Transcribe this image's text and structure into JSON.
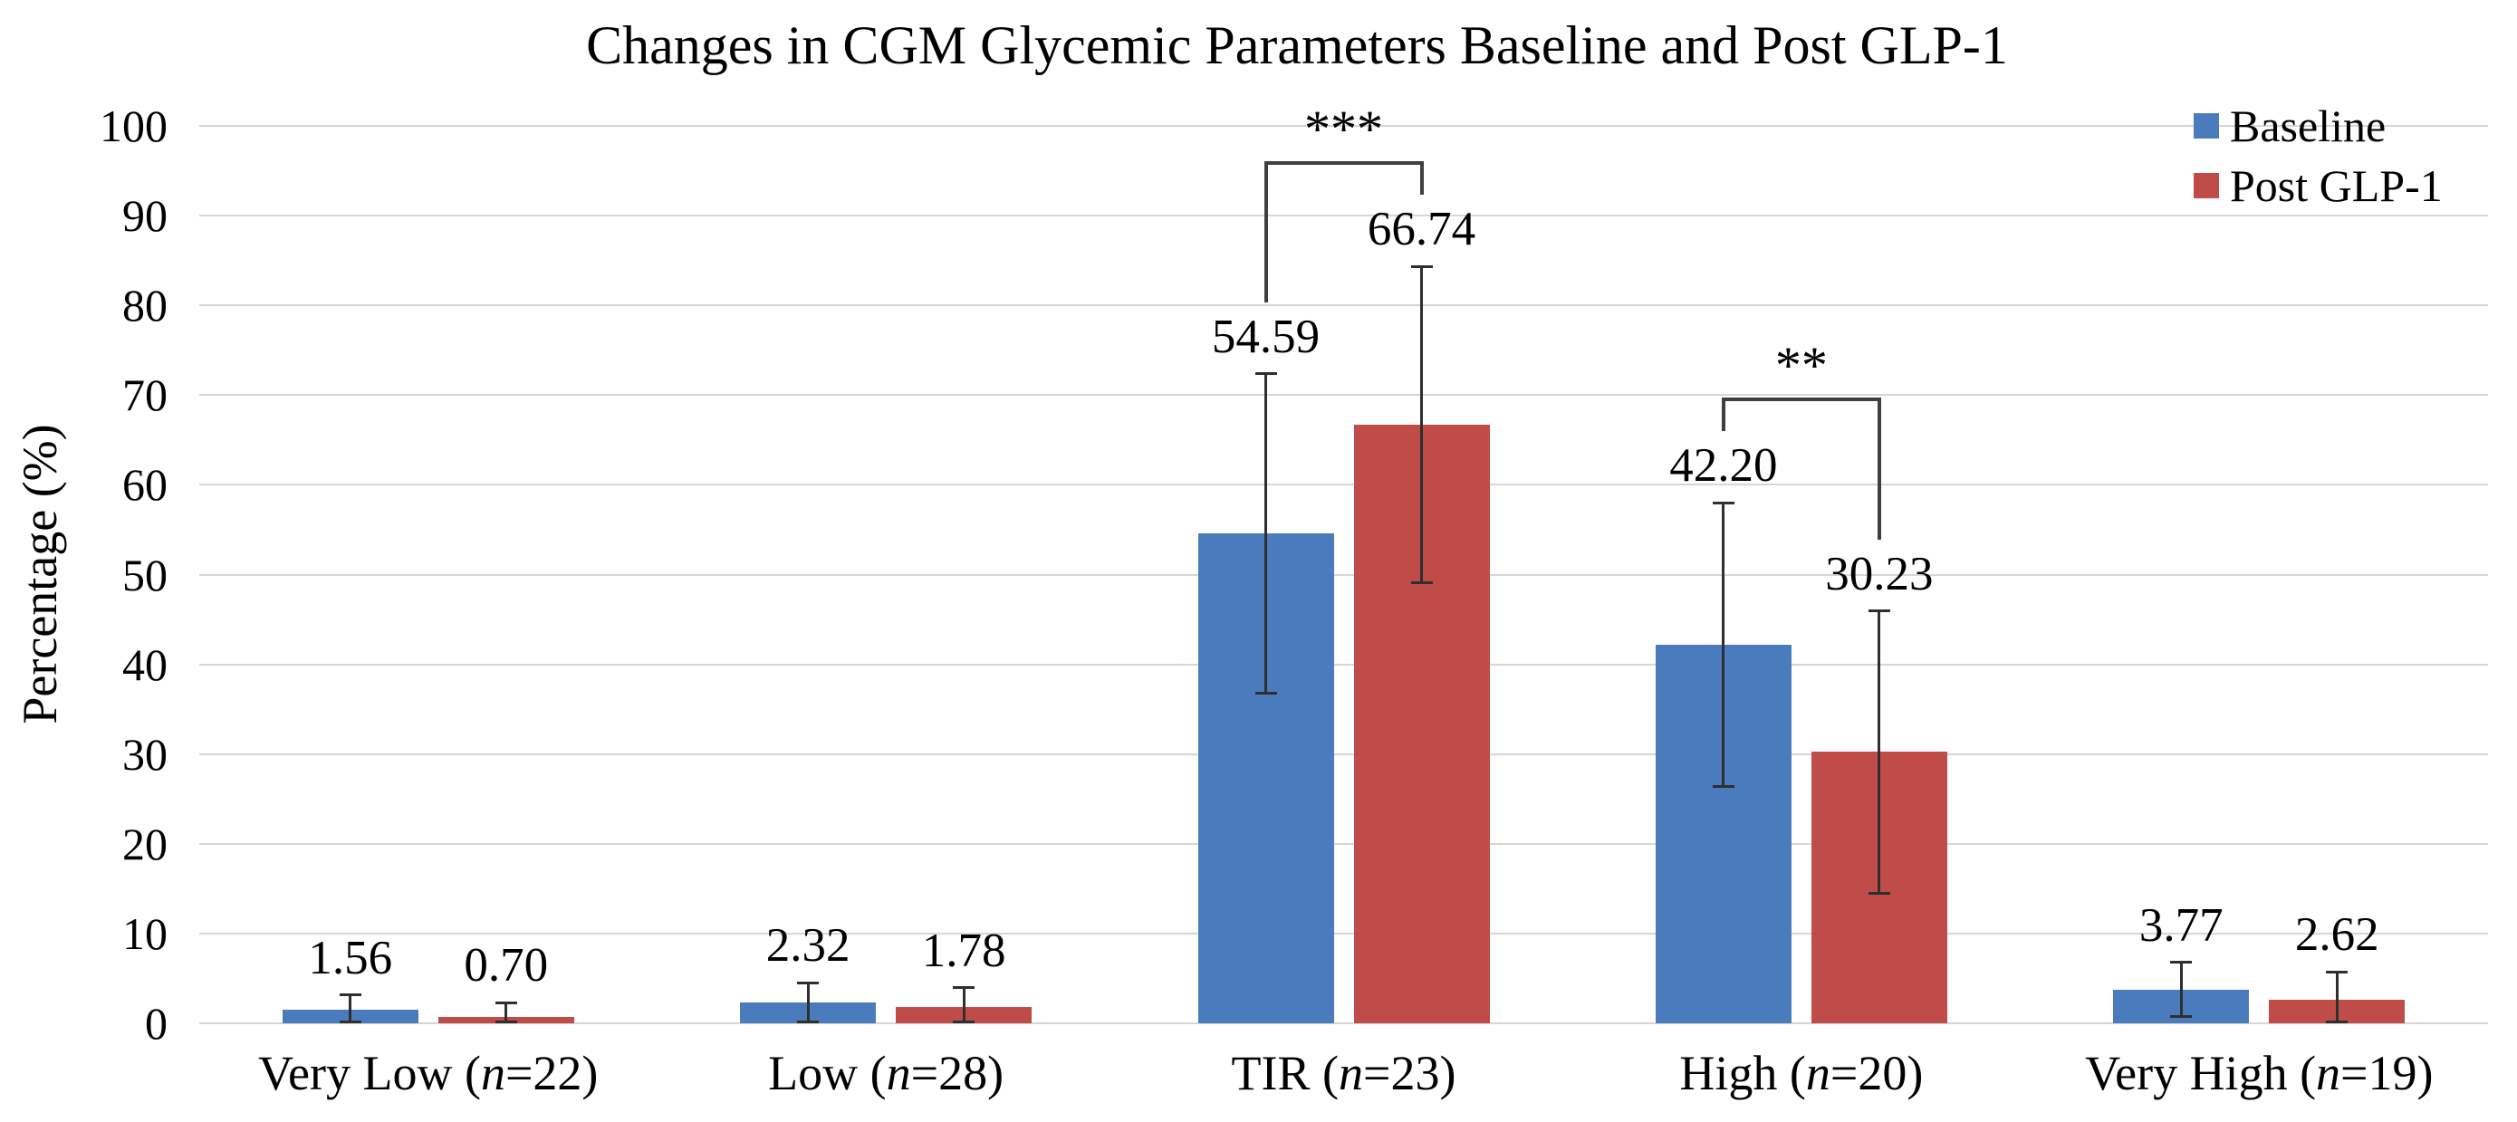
{
  "chart_data": {
    "type": "bar",
    "title": "Changes in CGM Glycemic Parameters Baseline and Post GLP-1",
    "xlabel": "",
    "ylabel": "Percentage (%)",
    "ylim": [
      0,
      100
    ],
    "ytick_labels": [
      "0",
      "10",
      "20",
      "30",
      "40",
      "50",
      "60",
      "70",
      "80",
      "90",
      "100"
    ],
    "grid": true,
    "legend_position": "top-right",
    "categories": [
      {
        "full": "Very Low (n=22)",
        "parts": [
          "Very Low (",
          "n",
          "=22)"
        ]
      },
      {
        "full": "Low (n=28)",
        "parts": [
          "Low (",
          "n",
          "=28)"
        ]
      },
      {
        "full": "TIR (n=23)",
        "parts": [
          "TIR (",
          "n",
          "=23)"
        ]
      },
      {
        "full": "High (n=20)",
        "parts": [
          "High (",
          "n",
          "=20)"
        ]
      },
      {
        "full": "Very High (n=19)",
        "parts": [
          "Very High (",
          "n",
          "=19)"
        ]
      }
    ],
    "series": [
      {
        "name": "Baseline",
        "color": "#4A7CBD",
        "values": [
          1.56,
          2.32,
          54.59,
          42.2,
          3.77
        ],
        "value_labels": [
          "1.56",
          "2.32",
          "54.59",
          "42.20",
          "3.77"
        ],
        "error": [
          1.6,
          2.2,
          17.8,
          15.8,
          3.0
        ]
      },
      {
        "name": "Post GLP-1",
        "color": "#C04C4A",
        "values": [
          0.7,
          1.78,
          66.74,
          30.23,
          2.62
        ],
        "value_labels": [
          "0.70",
          "1.78",
          "66.74",
          "30.23",
          "2.62"
        ],
        "error": [
          1.6,
          2.2,
          17.6,
          15.7,
          3.1
        ]
      }
    ],
    "significance": [
      {
        "category_index": 2,
        "label": "***"
      },
      {
        "category_index": 3,
        "label": "**"
      }
    ],
    "colors": {
      "grid": "#D6D6D6",
      "axis_line": "#D6D6D6",
      "error_bar": "#2F2F2F",
      "bracket": "#3F3F3F",
      "text": "#000000",
      "background": "#FFFFFF"
    }
  }
}
